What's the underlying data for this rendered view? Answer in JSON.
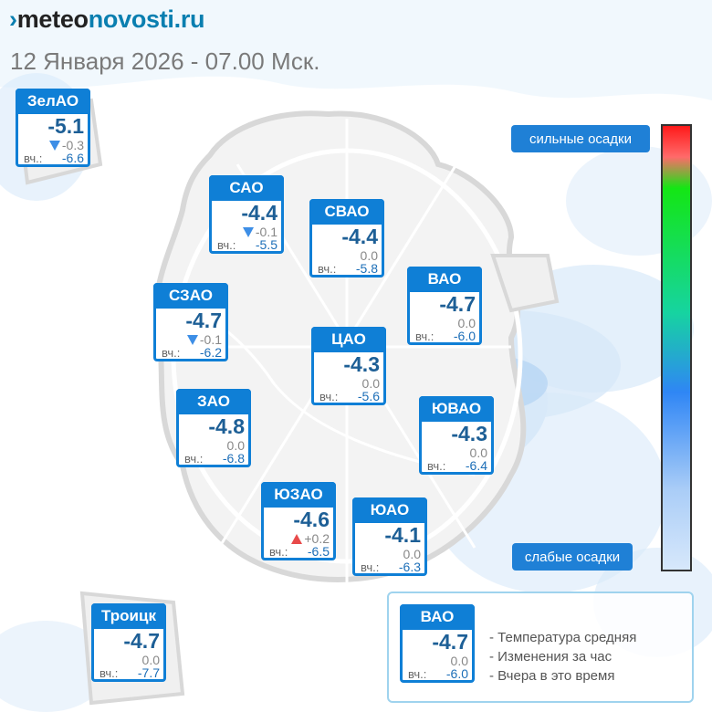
{
  "header": {
    "logo_mark": "›",
    "logo_part1": "meteo",
    "logo_part2": "novosti.ru",
    "subtitle": "12 Января 2026 - 07.00 Мск."
  },
  "districts": [
    {
      "name": "ЗелАО",
      "temp": "-5.1",
      "change": "-0.3",
      "trend": "down",
      "yesterday_label": "вч.:",
      "yesterday": "-6.6"
    },
    {
      "name": "САО",
      "temp": "-4.4",
      "change": "-0.1",
      "trend": "down",
      "yesterday_label": "вч.:",
      "yesterday": "-5.5"
    },
    {
      "name": "СВАО",
      "temp": "-4.4",
      "change": "0.0",
      "trend": "none",
      "yesterday_label": "вч.:",
      "yesterday": "-5.8"
    },
    {
      "name": "ВАО",
      "temp": "-4.7",
      "change": "0.0",
      "trend": "none",
      "yesterday_label": "вч.:",
      "yesterday": "-6.0"
    },
    {
      "name": "СЗАО",
      "temp": "-4.7",
      "change": "-0.1",
      "trend": "down",
      "yesterday_label": "вч.:",
      "yesterday": "-6.2"
    },
    {
      "name": "ЦАО",
      "temp": "-4.3",
      "change": "0.0",
      "trend": "none",
      "yesterday_label": "вч.:",
      "yesterday": "-5.6"
    },
    {
      "name": "ЗАО",
      "temp": "-4.8",
      "change": "0.0",
      "trend": "none",
      "yesterday_label": "вч.:",
      "yesterday": "-6.8"
    },
    {
      "name": "ЮВАО",
      "temp": "-4.3",
      "change": "0.0",
      "trend": "none",
      "yesterday_label": "вч.:",
      "yesterday": "-6.4"
    },
    {
      "name": "ЮЗАО",
      "temp": "-4.6",
      "change": "+0.2",
      "trend": "up",
      "yesterday_label": "вч.:",
      "yesterday": "-6.5"
    },
    {
      "name": "ЮАО",
      "temp": "-4.1",
      "change": "0.0",
      "trend": "none",
      "yesterday_label": "вч.:",
      "yesterday": "-6.3"
    },
    {
      "name": "Троицк",
      "temp": "-4.7",
      "change": "0.0",
      "trend": "none",
      "yesterday_label": "вч.:",
      "yesterday": "-7.7"
    }
  ],
  "scale": {
    "top_label": "сильные осадки",
    "bottom_label": "слабые осадки",
    "colors": [
      "#ff1a1a",
      "#14e614",
      "#2f86f5",
      "#d7e8fb"
    ]
  },
  "legend": {
    "sample": {
      "name": "ВАО",
      "temp": "-4.7",
      "change": "0.0",
      "yesterday_label": "вч.:",
      "yesterday": "-6.0"
    },
    "items": [
      "- Температура средняя",
      "- Изменения за час",
      "- Вчера в это время"
    ]
  },
  "colors": {
    "accent": "#0f7fd6",
    "temp": "#1d5f96",
    "precip": "#c9e1f7"
  }
}
